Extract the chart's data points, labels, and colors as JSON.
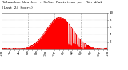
{
  "title": "Milwaukee Weather - Solar Radiation per Min W/m2 (Last 24 Hours)",
  "title_line2": "Last 24 Hours",
  "bg_color": "#ffffff",
  "plot_bg_color": "#ffffff",
  "fill_color": "#ff0000",
  "line_color": "#dd0000",
  "grid_color_v": "#888888",
  "grid_color_h": "#aaaaaa",
  "num_points": 1440,
  "peak_hour": 13.2,
  "peak_value": 870,
  "ylim": [
    0,
    1000
  ],
  "ytick_values": [
    200,
    400,
    600,
    800,
    1000
  ],
  "ytick_labels": [
    "2",
    "4",
    "6",
    "8",
    "10"
  ],
  "ylabel_fontsize": 3.0,
  "xlabel_fontsize": 2.8,
  "title_fontsize": 3.2
}
